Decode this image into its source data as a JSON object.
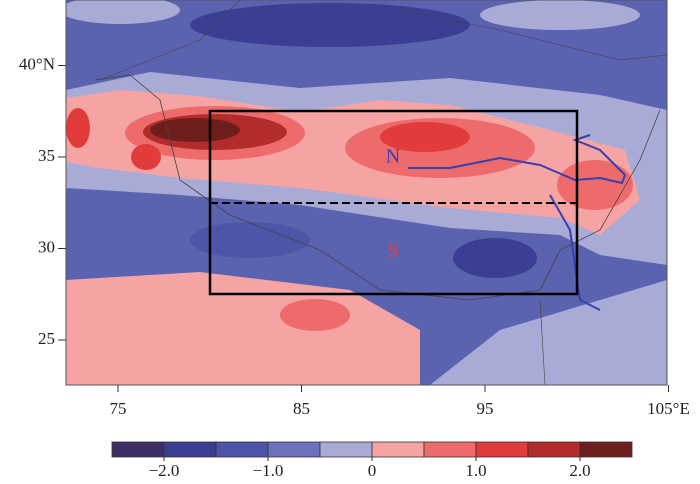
{
  "map": {
    "lat_ticks": [
      {
        "value": 40,
        "label": "40°N"
      },
      35,
      30,
      25
    ],
    "lon_ticks": [
      75,
      85,
      95,
      {
        "value": 105,
        "label": "105°E"
      }
    ],
    "region_labels": {
      "north": "N",
      "south": "S"
    }
  },
  "colorbar": {
    "colors": [
      "#3d2f66",
      "#3a3f94",
      "#4d55a8",
      "#6b71bb",
      "#a9abd7",
      "#f5a3a3",
      "#ee6b6b",
      "#e23b3b",
      "#b22c2c",
      "#6f1e1e"
    ],
    "ticks": [
      {
        "value": -2,
        "label": "−2.0"
      },
      {
        "value": -1,
        "label": "−1.0"
      },
      0,
      {
        "value": 1,
        "label": "1.0"
      },
      {
        "value": 2,
        "label": "2.0"
      }
    ]
  }
}
